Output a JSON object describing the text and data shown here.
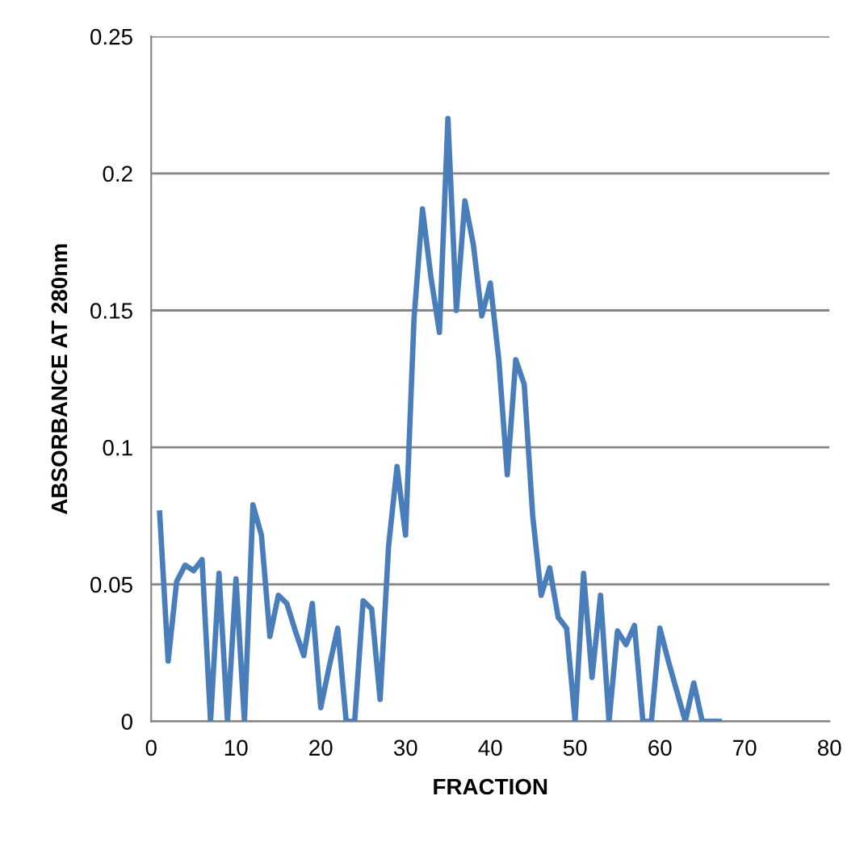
{
  "chart_data": {
    "type": "line",
    "xlabel": "FRACTION",
    "ylabel": "ABSORBANCE AT 280nm",
    "x": [
      1,
      2,
      3,
      4,
      5,
      6,
      7,
      8,
      9,
      10,
      11,
      12,
      13,
      14,
      15,
      16,
      17,
      18,
      19,
      20,
      21,
      22,
      23,
      24,
      25,
      26,
      27,
      28,
      29,
      30,
      31,
      32,
      33,
      34,
      35,
      36,
      37,
      38,
      39,
      40,
      41,
      42,
      43,
      44,
      45,
      46,
      47,
      48,
      49,
      50,
      51,
      52,
      53,
      54,
      55,
      56,
      57,
      58,
      59,
      60,
      61,
      62,
      63,
      64,
      65,
      66,
      67
    ],
    "series": [
      {
        "color": "#4a7ebb",
        "values": [
          0.076,
          0.022,
          0.051,
          0.057,
          0.055,
          0.059,
          0,
          0.054,
          0,
          0.052,
          0,
          0.079,
          0.068,
          0.031,
          0.046,
          0.043,
          0.033,
          0.024,
          0.043,
          0.005,
          0.02,
          0.034,
          0,
          0,
          0.044,
          0.041,
          0.008,
          0.064,
          0.093,
          0.068,
          0.147,
          0.187,
          0.162,
          0.142,
          0.22,
          0.15,
          0.19,
          0.174,
          0.148,
          0.16,
          0.132,
          0.09,
          0.132,
          0.123,
          0.075,
          0.046,
          0.056,
          0.038,
          0.034,
          0,
          0.054,
          0.016,
          0.046,
          0,
          0.033,
          0.028,
          0.035,
          0,
          0,
          0.034,
          0.022,
          0.011,
          0,
          0.014,
          0,
          0,
          0
        ]
      }
    ],
    "xlim": [
      0,
      80
    ],
    "xticks": [
      0,
      10,
      20,
      30,
      40,
      50,
      60,
      70,
      80
    ],
    "ylim": [
      0,
      0.25
    ],
    "yticks": [
      0,
      0.05,
      0.1,
      0.15,
      0.2,
      0.25
    ],
    "grid": "y",
    "legend": false,
    "marker": "none",
    "line_style": "solid"
  }
}
